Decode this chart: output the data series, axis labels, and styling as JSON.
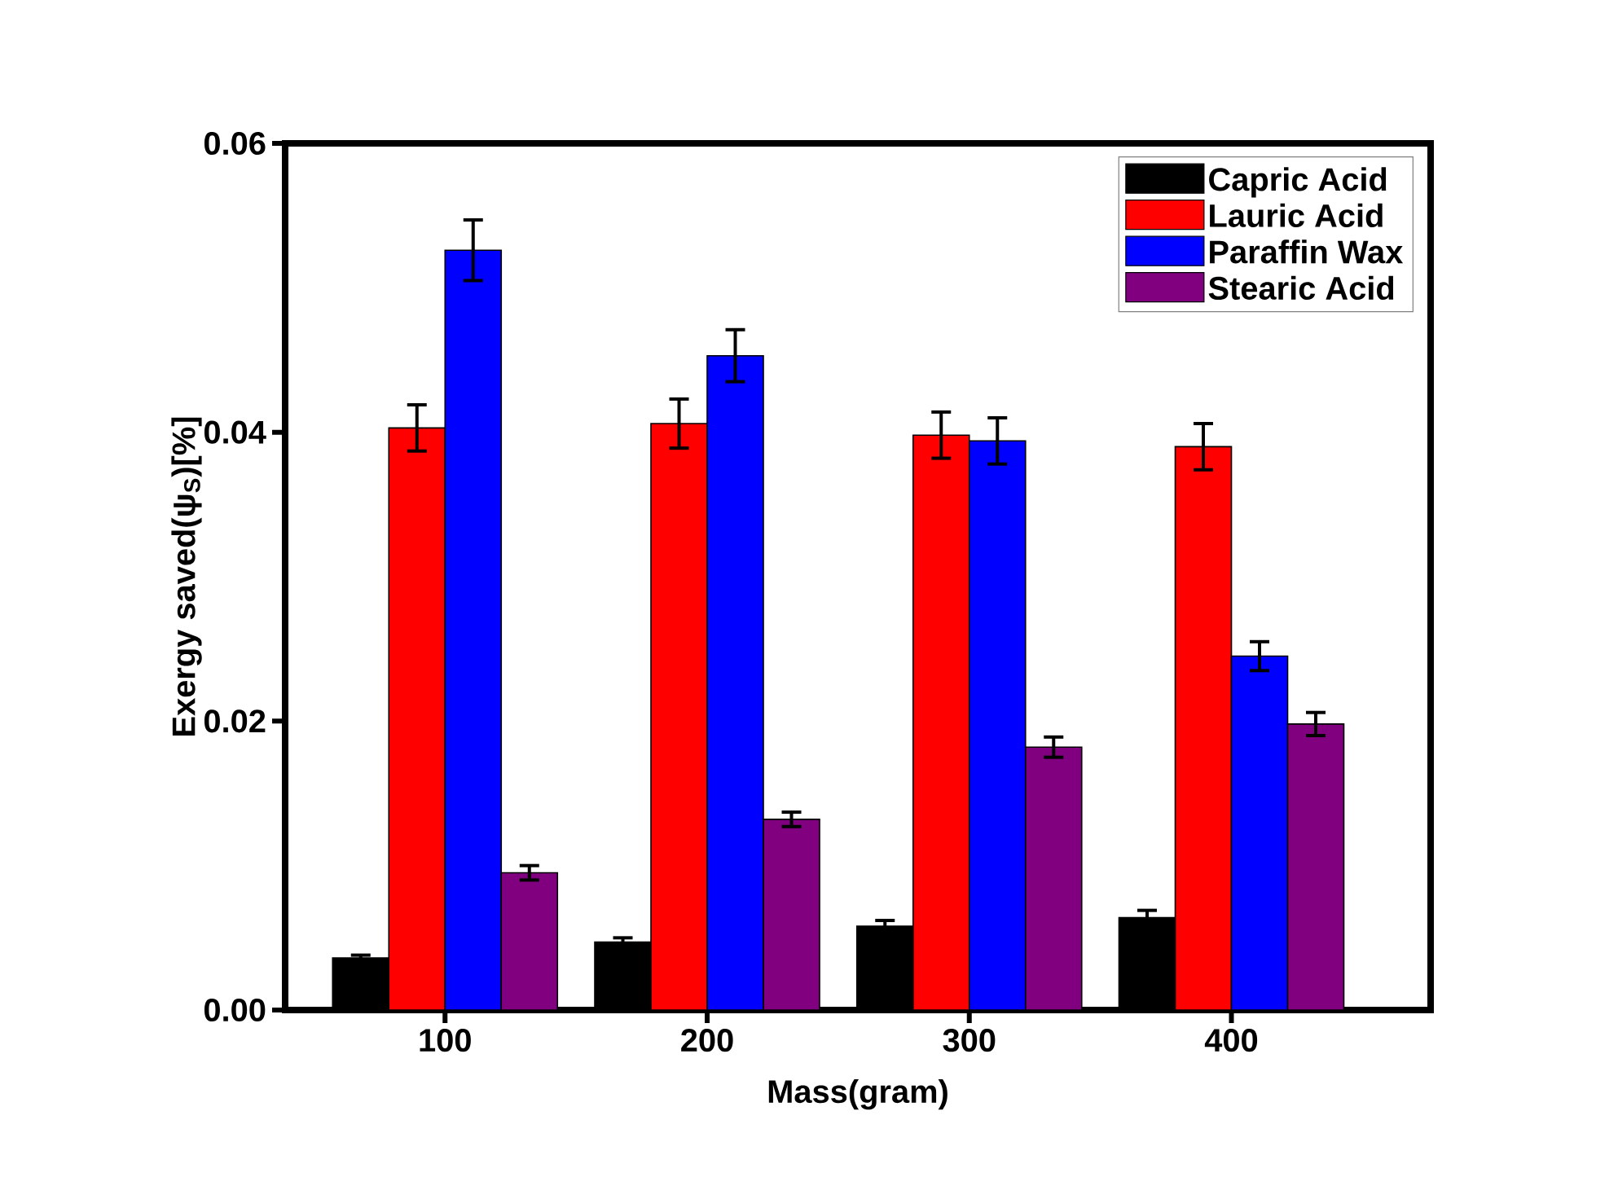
{
  "chart_data": {
    "type": "bar",
    "xlabel": "Mass(gram)",
    "ylabel": "Exergy saved(ψ$_{S}$)[%]",
    "categories": [
      "100",
      "200",
      "300",
      "400"
    ],
    "series": [
      {
        "name": "Capric Acid",
        "color": "#000000",
        "values": [
          0.0036,
          0.0047,
          0.0058,
          0.0064
        ],
        "errors": [
          0.0002,
          0.0003,
          0.0004,
          0.0005
        ]
      },
      {
        "name": "Lauric Acid",
        "color": "#ff0000",
        "values": [
          0.0403,
          0.0406,
          0.0398,
          0.039
        ],
        "errors": [
          0.0016,
          0.0017,
          0.0016,
          0.0016
        ]
      },
      {
        "name": "Paraffin Wax",
        "color": "#0000ff",
        "values": [
          0.0526,
          0.0453,
          0.0394,
          0.0245
        ],
        "errors": [
          0.0021,
          0.0018,
          0.0016,
          0.001
        ]
      },
      {
        "name": "Stearic Acid",
        "color": "#800080",
        "values": [
          0.0095,
          0.0132,
          0.0182,
          0.0198
        ],
        "errors": [
          0.0005,
          0.0005,
          0.0007,
          0.0008
        ]
      }
    ],
    "ylim": [
      0,
      0.06
    ],
    "yticks": [
      {
        "value": 0,
        "label": "0.00"
      },
      {
        "value": 0.02,
        "label": "0.02"
      },
      {
        "value": 0.04,
        "label": "0.04"
      },
      {
        "value": 0.06,
        "label": "0.06"
      }
    ],
    "legend": "top right",
    "grid": false
  }
}
